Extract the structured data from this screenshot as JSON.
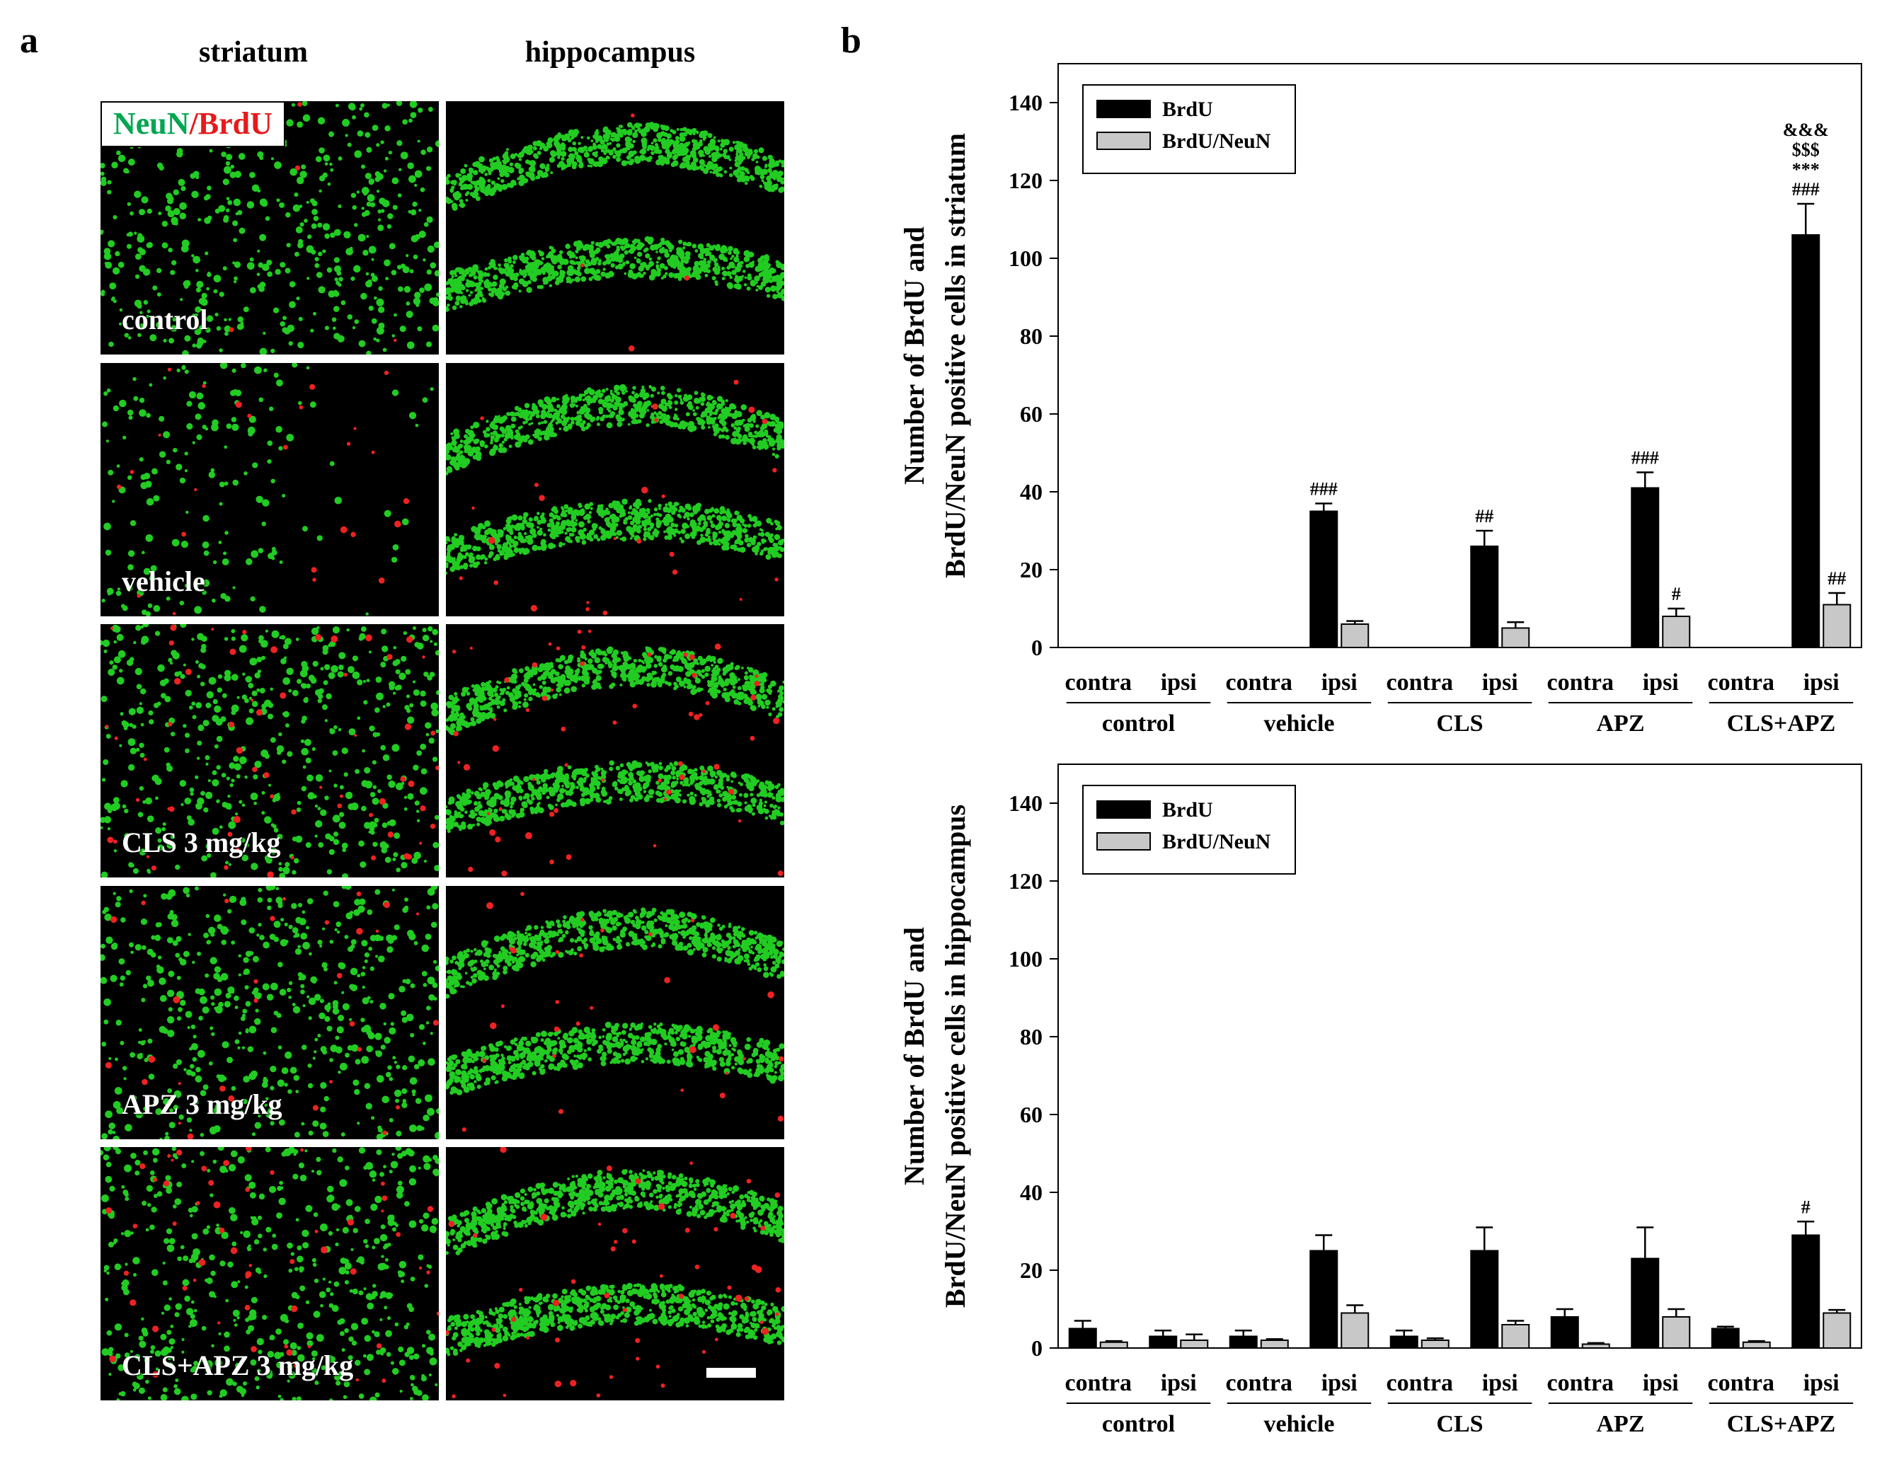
{
  "panel_a": {
    "letter": "a",
    "column_titles": [
      "striatum",
      "hippocampus"
    ],
    "stain_label": {
      "green": "NeuN",
      "separator": "/",
      "red": "BrdU"
    },
    "row_labels": [
      "control",
      "vehicle",
      "CLS 3 mg/kg",
      "APZ 3 mg/kg",
      "CLS+APZ 3 mg/kg"
    ],
    "colors": {
      "neun": "#22cc22",
      "brdu": "#ee2222",
      "stain_green_text": "#00a651",
      "stain_red_text": "#e8191b"
    }
  },
  "panel_b": {
    "letter": "b"
  },
  "chart_data": [
    {
      "type": "bar",
      "ylabel": [
        "Number of BrdU and",
        "BrdU/NeuN positive cells in striatum"
      ],
      "ylim": [
        0,
        150
      ],
      "yticks": [
        0,
        20,
        40,
        60,
        80,
        100,
        120,
        140
      ],
      "groups": [
        "control",
        "vehicle",
        "CLS",
        "APZ",
        "CLS+APZ"
      ],
      "sides": [
        "contra",
        "ipsi"
      ],
      "legend": {
        "placement": "top-left",
        "entries": [
          "BrdU",
          "BrdU/NeuN"
        ]
      },
      "series": [
        {
          "name": "BrdU",
          "color": "#000000",
          "values": [
            0,
            0,
            0,
            35,
            0,
            26,
            0,
            41,
            0,
            106
          ],
          "errors": [
            0,
            0,
            0,
            2,
            0,
            4,
            0,
            4,
            0,
            8
          ]
        },
        {
          "name": "BrdU/NeuN",
          "color": "#c8c8c8",
          "values": [
            0,
            0,
            0,
            6,
            0,
            5,
            0,
            8,
            0,
            11
          ],
          "errors": [
            0,
            0,
            0,
            0.8,
            0,
            1.5,
            0,
            2,
            0,
            3
          ]
        }
      ],
      "annotations": [
        {
          "series": "BrdU",
          "index": 3,
          "text": [
            "###"
          ]
        },
        {
          "series": "BrdU",
          "index": 5,
          "text": [
            "##"
          ]
        },
        {
          "series": "BrdU",
          "index": 7,
          "text": [
            "###"
          ]
        },
        {
          "series": "BrdU/NeuN",
          "index": 7,
          "text": [
            "#"
          ]
        },
        {
          "series": "BrdU",
          "index": 9,
          "text": [
            "&&&",
            "$$$",
            "***",
            "###"
          ]
        },
        {
          "series": "BrdU/NeuN",
          "index": 9,
          "text": [
            "##"
          ]
        }
      ]
    },
    {
      "type": "bar",
      "ylabel": [
        "Number of BrdU and",
        "BrdU/NeuN positive cells in hippocampus"
      ],
      "ylim": [
        0,
        150
      ],
      "yticks": [
        0,
        20,
        40,
        60,
        80,
        100,
        120,
        140
      ],
      "groups": [
        "control",
        "vehicle",
        "CLS",
        "APZ",
        "CLS+APZ"
      ],
      "sides": [
        "contra",
        "ipsi"
      ],
      "legend": {
        "placement": "top-left",
        "entries": [
          "BrdU",
          "BrdU/NeuN"
        ]
      },
      "series": [
        {
          "name": "BrdU",
          "color": "#000000",
          "values": [
            5,
            3,
            3,
            25,
            3,
            25,
            8,
            23,
            5,
            29
          ],
          "errors": [
            2,
            1.5,
            1.5,
            4,
            1.5,
            6,
            2,
            8,
            0.5,
            3.5
          ]
        },
        {
          "name": "BrdU/NeuN",
          "color": "#c8c8c8",
          "values": [
            1.5,
            2,
            2,
            9,
            2,
            6,
            1,
            8,
            1.5,
            9
          ],
          "errors": [
            0.3,
            1.5,
            0.3,
            2,
            0.5,
            1,
            0.3,
            2,
            0.3,
            0.8
          ]
        }
      ],
      "annotations": [
        {
          "series": "BrdU",
          "index": 9,
          "text": [
            "#"
          ]
        }
      ]
    }
  ]
}
